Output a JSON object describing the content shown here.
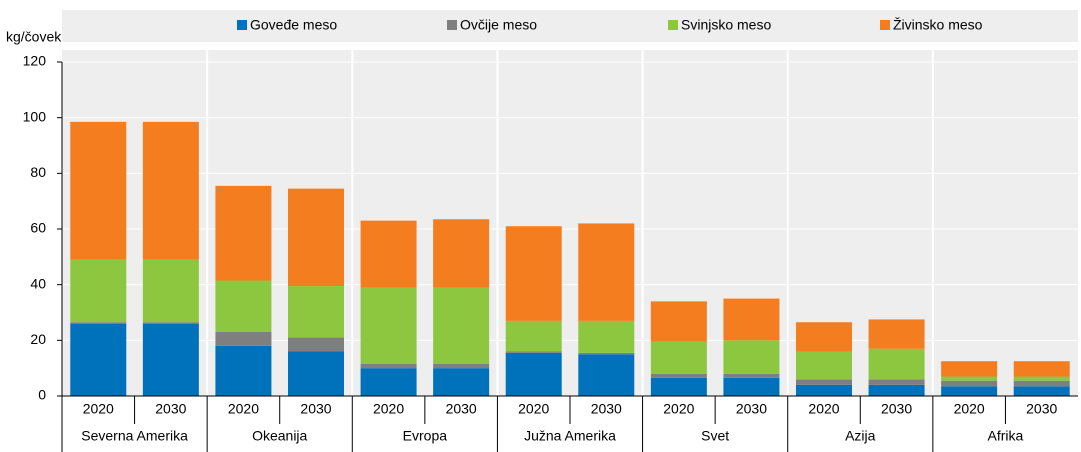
{
  "chart_data": {
    "type": "stacked_bar",
    "y_label": "kg/čovek",
    "categories": [
      "2020",
      "2030",
      "2020",
      "2030",
      "2020",
      "2030",
      "2020",
      "2030",
      "2020",
      "2030",
      "2020",
      "2030",
      "2020",
      "2030"
    ],
    "groups": [
      "Severna Amerika",
      "Okeanija",
      "Evropa",
      "Južna Amerika",
      "Svet",
      "Azija",
      "Afrika"
    ],
    "series": [
      {
        "name": "Goveđe meso",
        "color": "#0072bc",
        "values": [
          26,
          26,
          18,
          16,
          10,
          10,
          15.5,
          15,
          6.5,
          6.5,
          4,
          4,
          3.5,
          3.5
        ]
      },
      {
        "name": "Ovčije meso",
        "color": "#7f7f7f",
        "values": [
          0.5,
          0.5,
          5,
          5,
          1.5,
          1.5,
          0.5,
          0.5,
          1.5,
          1.5,
          2,
          2,
          2,
          2
        ]
      },
      {
        "name": "Svinjsko meso",
        "color": "#8dc63f",
        "values": [
          22.5,
          22.5,
          18.5,
          18.5,
          27.5,
          27.5,
          11,
          11.5,
          11.5,
          12,
          10,
          11,
          1.5,
          1.5
        ]
      },
      {
        "name": "Živinsko meso",
        "color": "#f47d20",
        "values": [
          49.5,
          49.5,
          34,
          35,
          24,
          24.5,
          34,
          35,
          14.5,
          15,
          10.5,
          10.5,
          5.5,
          5.5
        ]
      }
    ],
    "ylim": [
      0,
      120
    ],
    "yticks": [
      0,
      20,
      40,
      60,
      80,
      100,
      120
    ],
    "grid": true
  }
}
